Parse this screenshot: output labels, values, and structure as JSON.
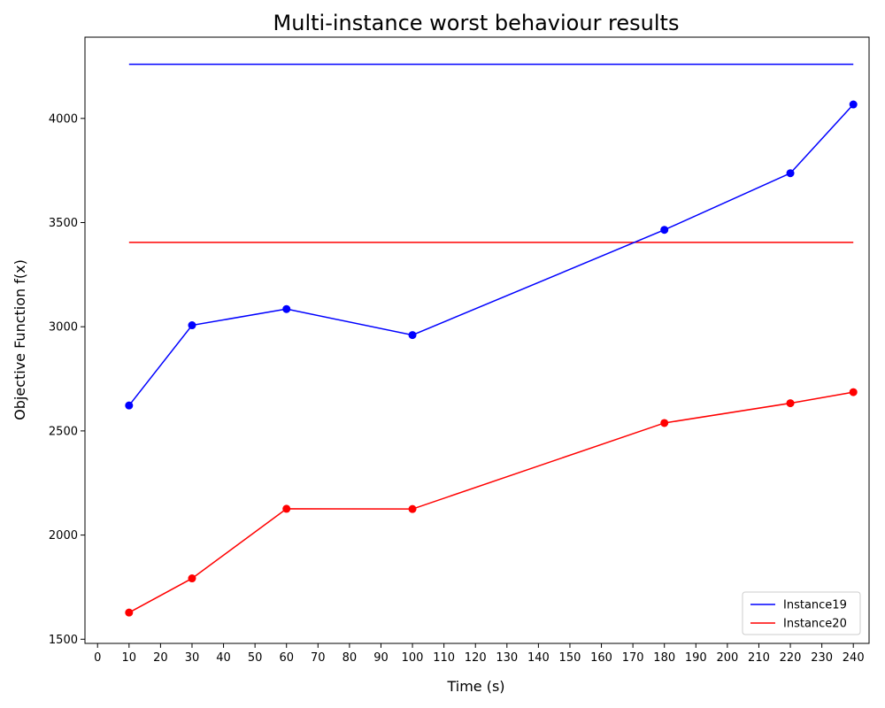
{
  "chart_data": {
    "type": "line",
    "title": "Multi-instance worst behaviour results",
    "xlabel": "Time (s)",
    "ylabel": "Objective Function f(x)",
    "xlim": [
      -4,
      245
    ],
    "ylim": [
      1480,
      4390
    ],
    "xticks": [
      0,
      10,
      20,
      30,
      40,
      50,
      60,
      70,
      80,
      90,
      100,
      110,
      120,
      130,
      140,
      150,
      160,
      170,
      180,
      190,
      200,
      210,
      220,
      230,
      240
    ],
    "yticks": [
      1500,
      2000,
      2500,
      3000,
      3500,
      4000
    ],
    "grid": false,
    "legend_position": "lower-right",
    "series": [
      {
        "name": "Instance19",
        "color": "#0000ff",
        "x": [
          10,
          30,
          60,
          100,
          180,
          220,
          240
        ],
        "y": [
          2622,
          3007,
          3085,
          2960,
          3465,
          3737,
          4067
        ]
      },
      {
        "name": "Instance20",
        "color": "#ff0000",
        "x": [
          10,
          30,
          60,
          100,
          180,
          220,
          240
        ],
        "y": [
          1628,
          1792,
          2126,
          2125,
          2538,
          2633,
          2686
        ]
      }
    ],
    "reference_lines": [
      {
        "series": "Instance19",
        "color": "#0000ff",
        "y": 4260,
        "x_range": [
          10,
          240
        ]
      },
      {
        "series": "Instance20",
        "color": "#ff0000",
        "y": 3405,
        "x_range": [
          10,
          240
        ]
      }
    ]
  }
}
